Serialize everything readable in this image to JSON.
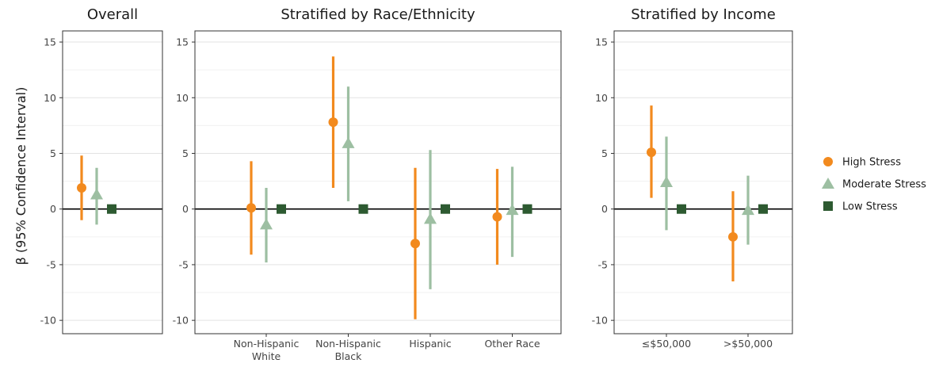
{
  "chart_data": {
    "type": "scatter",
    "subtype": "point-range (estimate with 95% confidence interval)",
    "ylabel": "β (95% Confidence Interval)",
    "ylim": [
      -11.2,
      16
    ],
    "yticks": [
      15,
      10,
      5,
      0,
      -5,
      -10
    ],
    "grid": true,
    "reference_line": 0,
    "legend": {
      "placement": "right",
      "entries": [
        {
          "name": "High Stress",
          "color": "#f28a1e",
          "shape": "circle"
        },
        {
          "name": "Moderate Stress",
          "color": "#9dbfa2",
          "shape": "triangle"
        },
        {
          "name": "Low Stress",
          "color": "#2d5a31",
          "shape": "square"
        }
      ]
    },
    "panels": [
      {
        "title": "Overall",
        "categories": [
          {
            "label": [
              "Overall"
            ],
            "show_label": false
          }
        ],
        "series": [
          {
            "name": "High Stress",
            "points": [
              {
                "est": 1.9,
                "lo": -1.0,
                "hi": 4.8
              }
            ]
          },
          {
            "name": "Moderate Stress",
            "points": [
              {
                "est": 1.3,
                "lo": -1.4,
                "hi": 3.7
              }
            ]
          },
          {
            "name": "Low Stress",
            "points": [
              {
                "est": 0,
                "lo": 0,
                "hi": 0
              }
            ]
          }
        ]
      },
      {
        "title": "Stratified by Race/Ethnicity",
        "categories": [
          {
            "label": [
              "Non-Hispanic",
              "White"
            ],
            "show_label": true
          },
          {
            "label": [
              "Non-Hispanic",
              "Black"
            ],
            "show_label": true
          },
          {
            "label": [
              "Hispanic"
            ],
            "show_label": true
          },
          {
            "label": [
              "Other Race"
            ],
            "show_label": true
          }
        ],
        "series": [
          {
            "name": "High Stress",
            "points": [
              {
                "est": 0.1,
                "lo": -4.1,
                "hi": 4.3
              },
              {
                "est": 7.8,
                "lo": 1.9,
                "hi": 13.7
              },
              {
                "est": -3.1,
                "lo": -9.9,
                "hi": 3.7
              },
              {
                "est": -0.7,
                "lo": -5.0,
                "hi": 3.6
              }
            ]
          },
          {
            "name": "Moderate Stress",
            "points": [
              {
                "est": -1.4,
                "lo": -4.8,
                "hi": 1.9
              },
              {
                "est": 5.9,
                "lo": 0.7,
                "hi": 11.0
              },
              {
                "est": -0.9,
                "lo": -7.2,
                "hi": 5.3
              },
              {
                "est": -0.1,
                "lo": -4.3,
                "hi": 3.8
              }
            ]
          },
          {
            "name": "Low Stress",
            "points": [
              {
                "est": 0,
                "lo": 0,
                "hi": 0
              },
              {
                "est": 0,
                "lo": 0,
                "hi": 0
              },
              {
                "est": 0,
                "lo": 0,
                "hi": 0
              },
              {
                "est": 0,
                "lo": 0,
                "hi": 0
              }
            ]
          }
        ]
      },
      {
        "title": "Stratified by Income",
        "categories": [
          {
            "label": [
              "≤$50,000"
            ],
            "show_label": true
          },
          {
            "label": [
              ">$50,000"
            ],
            "show_label": true
          }
        ],
        "series": [
          {
            "name": "High Stress",
            "points": [
              {
                "est": 5.1,
                "lo": 1.0,
                "hi": 9.3
              },
              {
                "est": -2.5,
                "lo": -6.5,
                "hi": 1.6
              }
            ]
          },
          {
            "name": "Moderate Stress",
            "points": [
              {
                "est": 2.4,
                "lo": -1.9,
                "hi": 6.5
              },
              {
                "est": -0.1,
                "lo": -3.2,
                "hi": 3.0
              }
            ]
          },
          {
            "name": "Low Stress",
            "points": [
              {
                "est": 0,
                "lo": 0,
                "hi": 0
              },
              {
                "est": 0,
                "lo": 0,
                "hi": 0
              }
            ]
          }
        ]
      }
    ]
  }
}
